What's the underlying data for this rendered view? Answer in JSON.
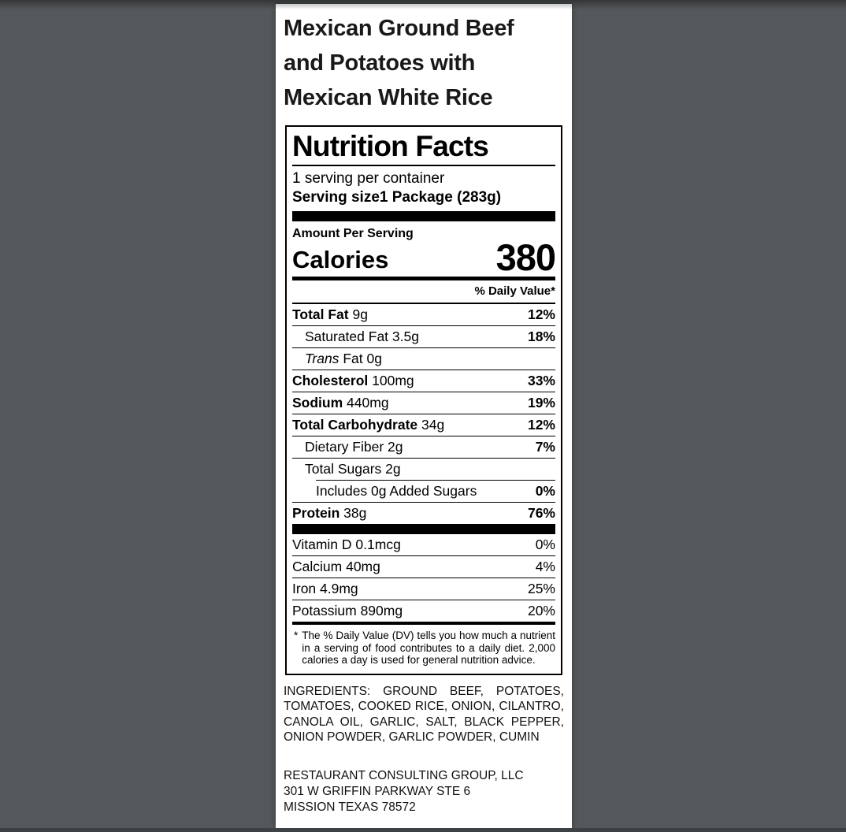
{
  "colors": {
    "canvas_bg": "#54585a",
    "page_bg": "#ffffff",
    "label_text": "#000000"
  },
  "product": {
    "title_line1": "Mexican Ground Beef",
    "title_line2": "and Potatoes with",
    "title_line3": "Mexican White Rice"
  },
  "label": {
    "header": "Nutrition Facts",
    "servings_per_container": "1 serving per container",
    "serving_size_label": "Serving size",
    "serving_size_value": "1 Package (283g)",
    "amount_per_serving": "Amount Per Serving",
    "calories_label": "Calories",
    "calories_value": "380",
    "daily_value_header": "% Daily Value*",
    "rows": [
      {
        "name": "Total Fat",
        "amount": "9g",
        "dv": "12%"
      },
      {
        "name": "Saturated Fat",
        "amount": "3.5g",
        "dv": "18%"
      },
      {
        "name_italic": "Trans",
        "name_rest": "Fat",
        "amount": "0g",
        "dv": ""
      },
      {
        "name": "Cholesterol",
        "amount": "100mg",
        "dv": "33%"
      },
      {
        "name": "Sodium",
        "amount": "440mg",
        "dv": "19%"
      },
      {
        "name": "Total Carbohydrate",
        "amount": "34g",
        "dv": "12%"
      },
      {
        "name": "Dietary Fiber",
        "amount": "2g",
        "dv": "7%"
      },
      {
        "name": "Total Sugars",
        "amount": "2g",
        "dv": ""
      },
      {
        "name": "Includes 0g Added Sugars",
        "amount": "",
        "dv": "0%"
      },
      {
        "name": "Protein",
        "amount": "38g",
        "dv": "76%"
      }
    ],
    "vitamins": [
      {
        "name": "Vitamin D",
        "amount": "0.1mcg",
        "dv": "0%"
      },
      {
        "name": "Calcium",
        "amount": "40mg",
        "dv": "4%"
      },
      {
        "name": "Iron",
        "amount": "4.9mg",
        "dv": "25%"
      },
      {
        "name": "Potassium",
        "amount": "890mg",
        "dv": "20%"
      }
    ],
    "footnote_marker": "*",
    "footnote": "The % Daily Value (DV) tells you how much a nutrient in a serving of food contributes to a daily diet. 2,000 calories a day is used for general nutrition advice."
  },
  "ingredients": "INGREDIENTS: GROUND BEEF, POTATOES, TOMATOES, COOKED RICE, ONION, CILANTRO, CANOLA OIL, GARLIC, SALT, BLACK PEPPER, ONION POWDER, GARLIC POWDER, CUMIN",
  "distributor": {
    "line1": "RESTAURANT CONSULTING GROUP, LLC",
    "line2": "301 W GRIFFIN PARKWAY STE 6",
    "line3": "MISSION TEXAS 78572"
  }
}
